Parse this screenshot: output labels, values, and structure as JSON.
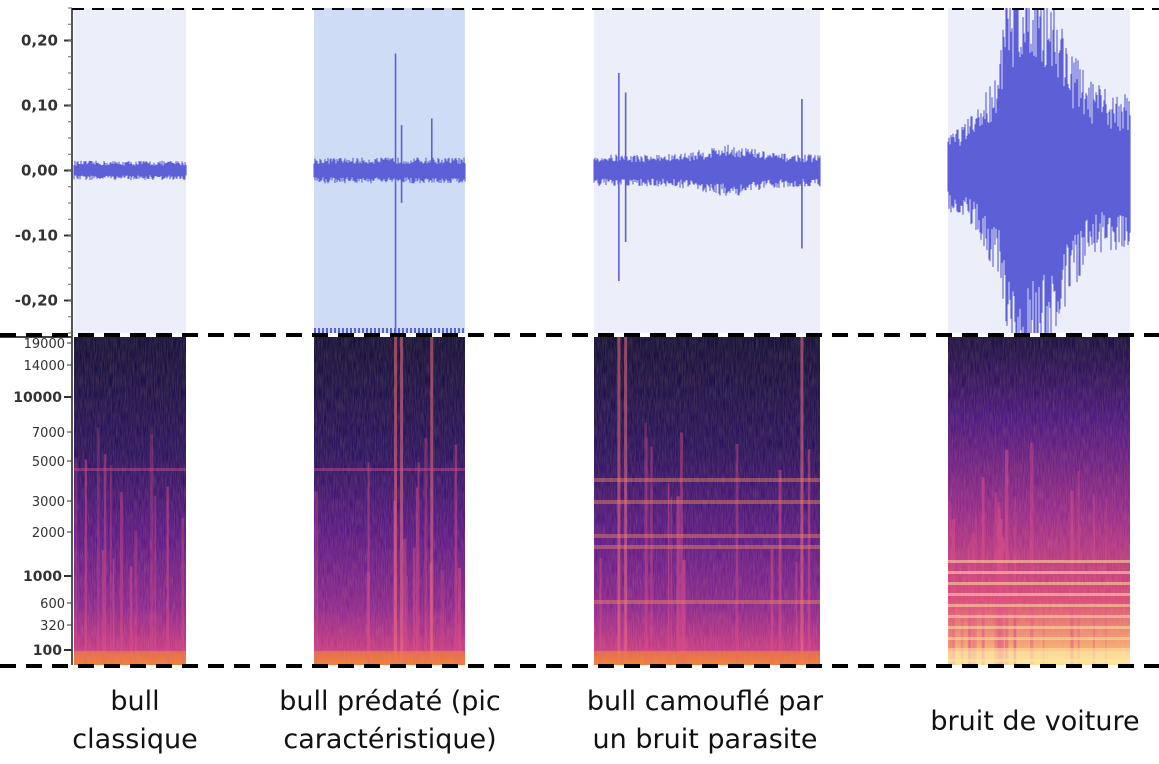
{
  "chart_data": {
    "type": "waveform-spectrogram",
    "title": "",
    "waveform": {
      "ylabel": "",
      "ticks": [
        "0,20",
        "0,10",
        "0,00",
        "-0,10",
        "-0,20"
      ],
      "tick_values": [
        0.2,
        0.1,
        0.0,
        -0.1,
        -0.2
      ],
      "ylim": [
        -0.25,
        0.25
      ]
    },
    "spectrogram": {
      "ylabel": "",
      "ticks": [
        "19000",
        "14000",
        "10000",
        "7000",
        "5000",
        "3000",
        "2000",
        "1000",
        "600",
        "320",
        "100"
      ],
      "tick_values": [
        19000,
        14000,
        10000,
        7000,
        5000,
        3000,
        2000,
        1000,
        600,
        320,
        100
      ],
      "bold_ticks": [
        "10000",
        "1000",
        "100"
      ]
    },
    "clips": [
      {
        "caption": [
          "bull",
          "classique"
        ],
        "selected": false,
        "amplitude_envelope": 0.015,
        "peaks": []
      },
      {
        "caption": [
          "bull prédaté (pic",
          "caractéristique)"
        ],
        "selected": true,
        "amplitude_envelope": 0.02,
        "peaks": [
          {
            "position": 0.54,
            "max": 0.18,
            "min": -0.25
          },
          {
            "position": 0.58,
            "max": 0.07,
            "min": -0.05
          },
          {
            "position": 0.78,
            "max": 0.08,
            "min": -0.01
          }
        ]
      },
      {
        "caption": [
          "bull camouflé par",
          "un bruit parasite"
        ],
        "selected": false,
        "amplitude_envelope": 0.025,
        "peaks": [
          {
            "position": 0.11,
            "max": 0.15,
            "min": -0.17
          },
          {
            "position": 0.14,
            "max": 0.12,
            "min": -0.11
          },
          {
            "position": 0.92,
            "max": 0.11,
            "min": -0.12
          }
        ]
      },
      {
        "caption": [
          "bruit de voiture"
        ],
        "selected": false,
        "amplitude_envelope": 0.25,
        "peaks": []
      }
    ],
    "colors": {
      "waveform": "#5c5fd6",
      "clip_background": "#eceefa",
      "clip_selected_background": "#cfdcf6",
      "axis_text": "#333333",
      "divider": "#000000"
    }
  }
}
